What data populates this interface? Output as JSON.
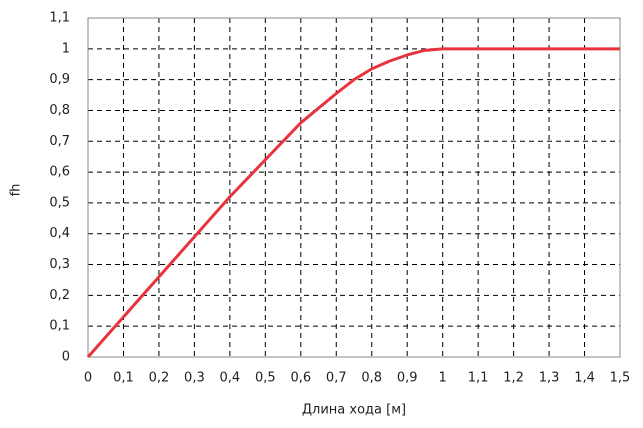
{
  "chart_data": {
    "type": "line",
    "x_label": "Длина хода [м]",
    "y_label": "fh",
    "x": [
      0,
      0.1,
      0.2,
      0.3,
      0.4,
      0.5,
      0.6,
      0.7,
      0.75,
      0.8,
      0.85,
      0.9,
      0.95,
      1.0,
      1.1,
      1.2,
      1.3,
      1.4,
      1.5
    ],
    "series": [
      {
        "name": "fh",
        "color": "#e8333c",
        "values": [
          0,
          0.13,
          0.26,
          0.39,
          0.52,
          0.64,
          0.76,
          0.855,
          0.9,
          0.935,
          0.96,
          0.98,
          0.995,
          1.0,
          1.0,
          1.0,
          1.0,
          1.0,
          1.0
        ]
      }
    ],
    "xlim": [
      0,
      1.5
    ],
    "ylim": [
      0,
      1.1
    ],
    "xticks": [
      0,
      {
        "value": 0.1,
        "label": "0,1"
      },
      {
        "value": 0.2,
        "label": "0,2"
      },
      {
        "value": 0.3,
        "label": "0,3"
      },
      {
        "value": 0.4,
        "label": "0,4"
      },
      {
        "value": 0.5,
        "label": "0,5"
      },
      {
        "value": 0.6,
        "label": "0,6"
      },
      {
        "value": 0.7,
        "label": "0,7"
      },
      {
        "value": 0.8,
        "label": "0,8"
      },
      {
        "value": 0.9,
        "label": "0,9"
      },
      1,
      {
        "value": 1.1,
        "label": "1,1"
      },
      {
        "value": 1.2,
        "label": "1,2"
      },
      {
        "value": 1.3,
        "label": "1,3"
      },
      {
        "value": 1.4,
        "label": "1,4"
      },
      {
        "value": 1.5,
        "label": "1,5"
      }
    ],
    "yticks": [
      0,
      {
        "value": 0.1,
        "label": "0,1"
      },
      {
        "value": 0.2,
        "label": "0,2"
      },
      {
        "value": 0.3,
        "label": "0,3"
      },
      {
        "value": 0.4,
        "label": "0,4"
      },
      {
        "value": 0.5,
        "label": "0,5"
      },
      {
        "value": 0.6,
        "label": "0,6"
      },
      {
        "value": 0.7,
        "label": "0,7"
      },
      {
        "value": 0.8,
        "label": "0,8"
      },
      {
        "value": 0.9,
        "label": "0,9"
      },
      1,
      {
        "value": 1.1,
        "label": "1,1"
      }
    ],
    "grid": true
  }
}
